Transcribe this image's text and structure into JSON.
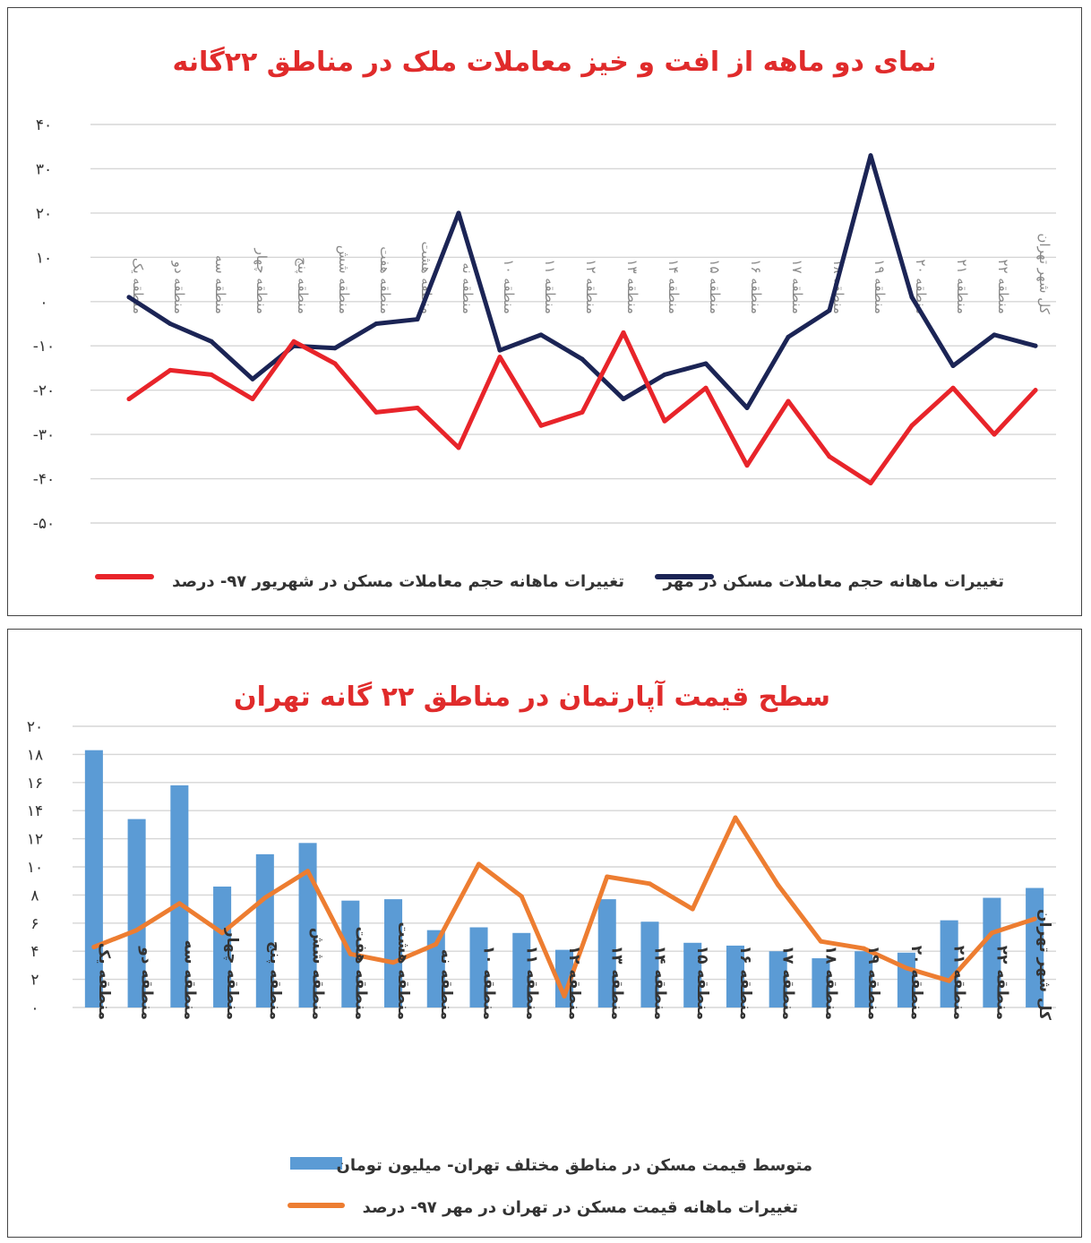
{
  "chart_data": [
    {
      "type": "line",
      "title": "نمای دو ماهه از افت و خیز معاملات ملک در مناطق ۲۲گانه",
      "ylim": [
        -50,
        40
      ],
      "yticks": [
        40,
        30,
        20,
        10,
        0,
        -10,
        -20,
        -30,
        -40,
        -50
      ],
      "ytick_labels": [
        "۴۰",
        "۳۰",
        "۲۰",
        "۱۰",
        "۰",
        "-۱۰",
        "-۲۰",
        "-۳۰",
        "-۴۰",
        "-۵۰"
      ],
      "categories": [
        "منطقه یک",
        "منطقه دو",
        "منطقه سه",
        "منطقه چهار",
        "منطقه پنج",
        "منطقه شش",
        "منطقه هفت",
        "منطقه هشت",
        "منطقه نه",
        "منطقه ۱۰",
        "منطقه ۱۱",
        "منطقه ۱۲",
        "منطقه ۱۳",
        "منطقه ۱۴",
        "منطقه ۱۵",
        "منطقه ۱۶",
        "منطقه ۱۷",
        "منطقه ۱۸",
        "منطقه ۱۹",
        "منطقه ۲۰",
        "منطقه ۲۱",
        "منطقه ۲۲",
        "کل شهر تهران"
      ],
      "grid": true,
      "legend_position": "bottom",
      "series": [
        {
          "name": "تغییرات ماهانه حجم معاملات مسکن در شهریور ۹۷- درصد",
          "color": "#e8242a",
          "values": [
            -22,
            -15.5,
            -16.5,
            -22,
            -9,
            -14,
            -25,
            -24,
            -33,
            -12.5,
            -28,
            -25,
            -7,
            -27,
            -19.5,
            -37,
            -22.5,
            -35,
            -41,
            -28,
            -19.5,
            -30,
            -20
          ]
        },
        {
          "name": "تغییرات ماهانه حجم معاملات مسکن در مهر",
          "color": "#1b2455",
          "values": [
            1,
            -5,
            -9,
            -17.5,
            -10,
            -10.5,
            -5,
            -4,
            20,
            -11,
            -7.5,
            -13,
            -22,
            -16.5,
            -14,
            -24,
            -8,
            -2,
            33,
            1,
            -14.5,
            -7.5,
            -10
          ]
        }
      ]
    },
    {
      "type": "bar",
      "title": "سطح قیمت آپارتمان در مناطق ۲۲ گانه تهران",
      "ylim": [
        0,
        20
      ],
      "yticks": [
        20,
        18,
        16,
        14,
        12,
        10,
        8,
        6,
        4,
        2,
        0
      ],
      "ytick_labels": [
        "۲۰",
        "۱۸",
        "۱۶",
        "۱۴",
        "۱۲",
        "۱۰",
        "۸",
        "۶",
        "۴",
        "۲",
        "۰"
      ],
      "categories": [
        "منطقه یک",
        "منطقه دو",
        "منطقه سه",
        "منطقه چهار",
        "منطقه پنج",
        "منطقه شش",
        "منطقه هفت",
        "منطقه هشت",
        "منطقه نه",
        "منطقه ۱۰",
        "منطقه ۱۱",
        "منطقه ۱۲",
        "منطقه ۱۳",
        "منطقه ۱۴",
        "منطقه ۱۵",
        "منطقه ۱۶",
        "منطقه ۱۷",
        "منطقه ۱۸",
        "منطقه ۱۹",
        "منطقه ۲۰",
        "منطقه ۲۱",
        "منطقه ۲۲",
        "کل شهر تهران"
      ],
      "grid": true,
      "legend_position": "bottom",
      "series": [
        {
          "name": "متوسط قیمت مسکن در مناطق مختلف تهران- میلیون تومان",
          "kind": "bar",
          "color": "#5b9bd5",
          "values": [
            18.3,
            13.4,
            15.8,
            8.6,
            10.9,
            11.7,
            7.6,
            7.7,
            5.5,
            5.7,
            5.3,
            4.1,
            7.7,
            6.1,
            4.6,
            4.4,
            4.0,
            3.5,
            4.0,
            3.9,
            6.2,
            7.8,
            8.5
          ]
        },
        {
          "name": "تغییرات ماهانه قیمت مسکن در تهران در مهر ۹۷- درصد",
          "kind": "line",
          "color": "#ed7d31",
          "values": [
            4.3,
            5.5,
            7.4,
            5.3,
            7.8,
            9.7,
            3.8,
            3.2,
            4.5,
            10.2,
            7.9,
            0.8,
            9.3,
            8.8,
            7.0,
            13.5,
            8.7,
            4.7,
            4.2,
            2.8,
            1.9,
            5.3,
            6.3
          ]
        }
      ]
    }
  ]
}
